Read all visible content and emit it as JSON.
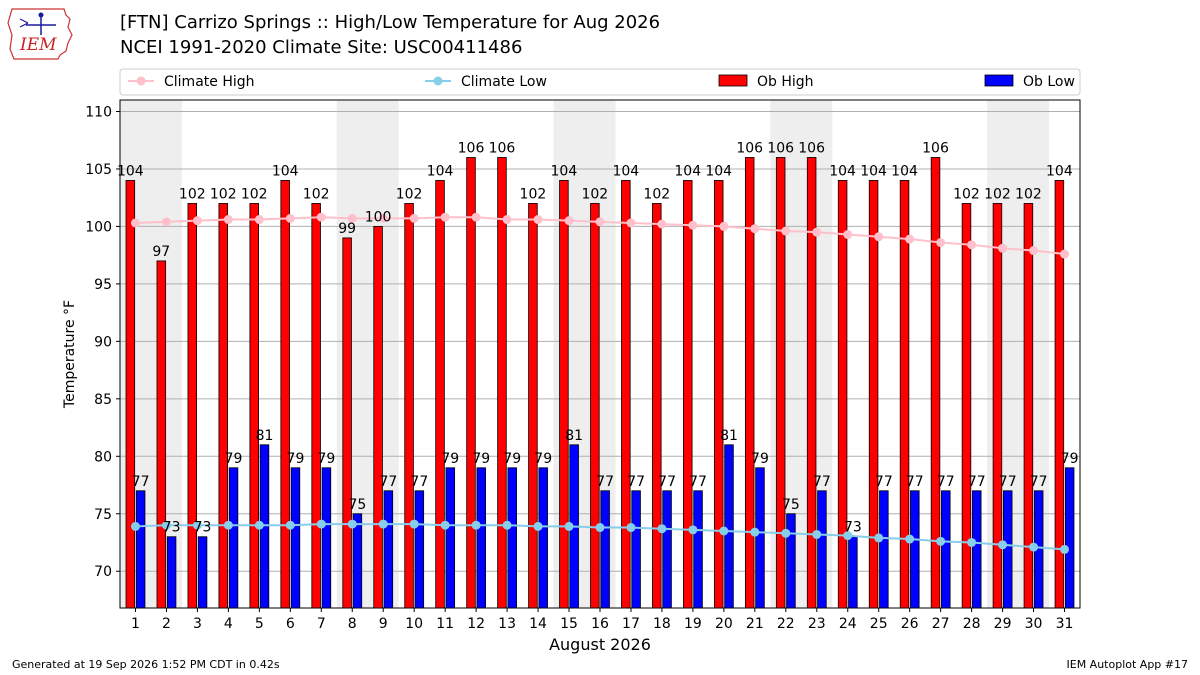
{
  "header": {
    "logo_text": "IEM",
    "title_line1": "[FTN] Carrizo Springs :: High/Low Temperature for Aug 2026",
    "title_line2": "NCEI 1991-2020 Climate Site: USC00411486"
  },
  "footer": {
    "generated": "Generated at 19 Sep 2026 1:52 PM CDT in 0.42s",
    "app": "IEM Autoplot App #17"
  },
  "chart_data": {
    "type": "bar",
    "xlabel": "August 2026",
    "ylabel": "Temperature °F",
    "ylim": [
      66.8,
      111
    ],
    "yticks": [
      70,
      75,
      80,
      85,
      90,
      95,
      100,
      105,
      110
    ],
    "grid": true,
    "legend_placement": "top",
    "categories": [
      "1",
      "2",
      "3",
      "4",
      "5",
      "6",
      "7",
      "8",
      "9",
      "10",
      "11",
      "12",
      "13",
      "14",
      "15",
      "16",
      "17",
      "18",
      "19",
      "20",
      "21",
      "22",
      "23",
      "24",
      "25",
      "26",
      "27",
      "28",
      "29",
      "30",
      "31"
    ],
    "weekend_shading_days": [
      1,
      2,
      8,
      9,
      15,
      16,
      22,
      23,
      29,
      30
    ],
    "series": [
      {
        "name": "Climate High",
        "kind": "line",
        "color": "#ffc0cb",
        "values": [
          100.3,
          100.4,
          100.5,
          100.6,
          100.6,
          100.7,
          100.8,
          100.7,
          100.7,
          100.7,
          100.8,
          100.8,
          100.6,
          100.6,
          100.5,
          100.4,
          100.3,
          100.2,
          100.1,
          100.0,
          99.8,
          99.6,
          99.5,
          99.3,
          99.1,
          98.9,
          98.6,
          98.4,
          98.1,
          97.9,
          97.6
        ]
      },
      {
        "name": "Climate Low",
        "kind": "line",
        "color": "#87ceeb",
        "values": [
          73.9,
          74.0,
          74.0,
          74.0,
          74.0,
          74.0,
          74.1,
          74.1,
          74.1,
          74.1,
          74.0,
          74.0,
          74.0,
          73.9,
          73.9,
          73.8,
          73.8,
          73.7,
          73.6,
          73.5,
          73.4,
          73.3,
          73.2,
          73.1,
          72.9,
          72.8,
          72.6,
          72.5,
          72.3,
          72.1,
          71.9
        ]
      },
      {
        "name": "Ob High",
        "kind": "bar",
        "color": "#ff0000",
        "values": [
          104,
          97,
          102,
          102,
          102,
          104,
          102,
          99,
          100,
          102,
          104,
          106,
          106,
          102,
          104,
          102,
          104,
          102,
          104,
          104,
          106,
          106,
          106,
          104,
          104,
          104,
          106,
          102,
          102,
          102,
          104
        ]
      },
      {
        "name": "Ob Low",
        "kind": "bar",
        "color": "#0000ff",
        "values": [
          77,
          73,
          73,
          79,
          81,
          79,
          79,
          75,
          77,
          77,
          79,
          79,
          79,
          79,
          81,
          77,
          77,
          77,
          77,
          81,
          79,
          75,
          77,
          73,
          77,
          77,
          77,
          77,
          77,
          77,
          79
        ]
      }
    ]
  }
}
